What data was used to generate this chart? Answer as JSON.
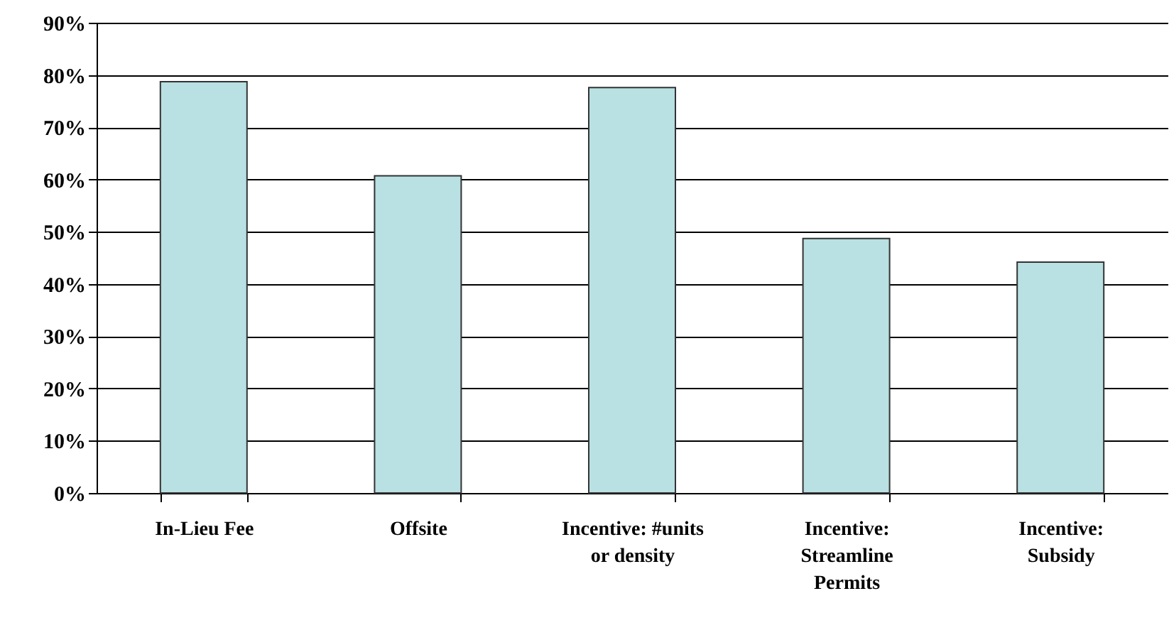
{
  "chart_data": {
    "type": "bar",
    "categories": [
      "In-Lieu Fee",
      "Offsite",
      "Incentive: #units or density",
      "Incentive: Streamline Permits",
      "Incentive: Subsidy"
    ],
    "values": [
      78.7,
      60.7,
      77.6,
      48.7,
      44.2
    ],
    "color": "#b9e0e2",
    "ylim": [
      0,
      90
    ],
    "yticks": [
      {
        "value": 0,
        "label": "0%"
      },
      {
        "value": 10,
        "label": "10%"
      },
      {
        "value": 20,
        "label": "20%"
      },
      {
        "value": 30,
        "label": "30%"
      },
      {
        "value": 40,
        "label": "40%"
      },
      {
        "value": 50,
        "label": "50%"
      },
      {
        "value": 60,
        "label": "60%"
      },
      {
        "value": 70,
        "label": "70%"
      },
      {
        "value": 80,
        "label": "80%"
      },
      {
        "value": 90,
        "label": "90%"
      }
    ],
    "grid": "y"
  }
}
